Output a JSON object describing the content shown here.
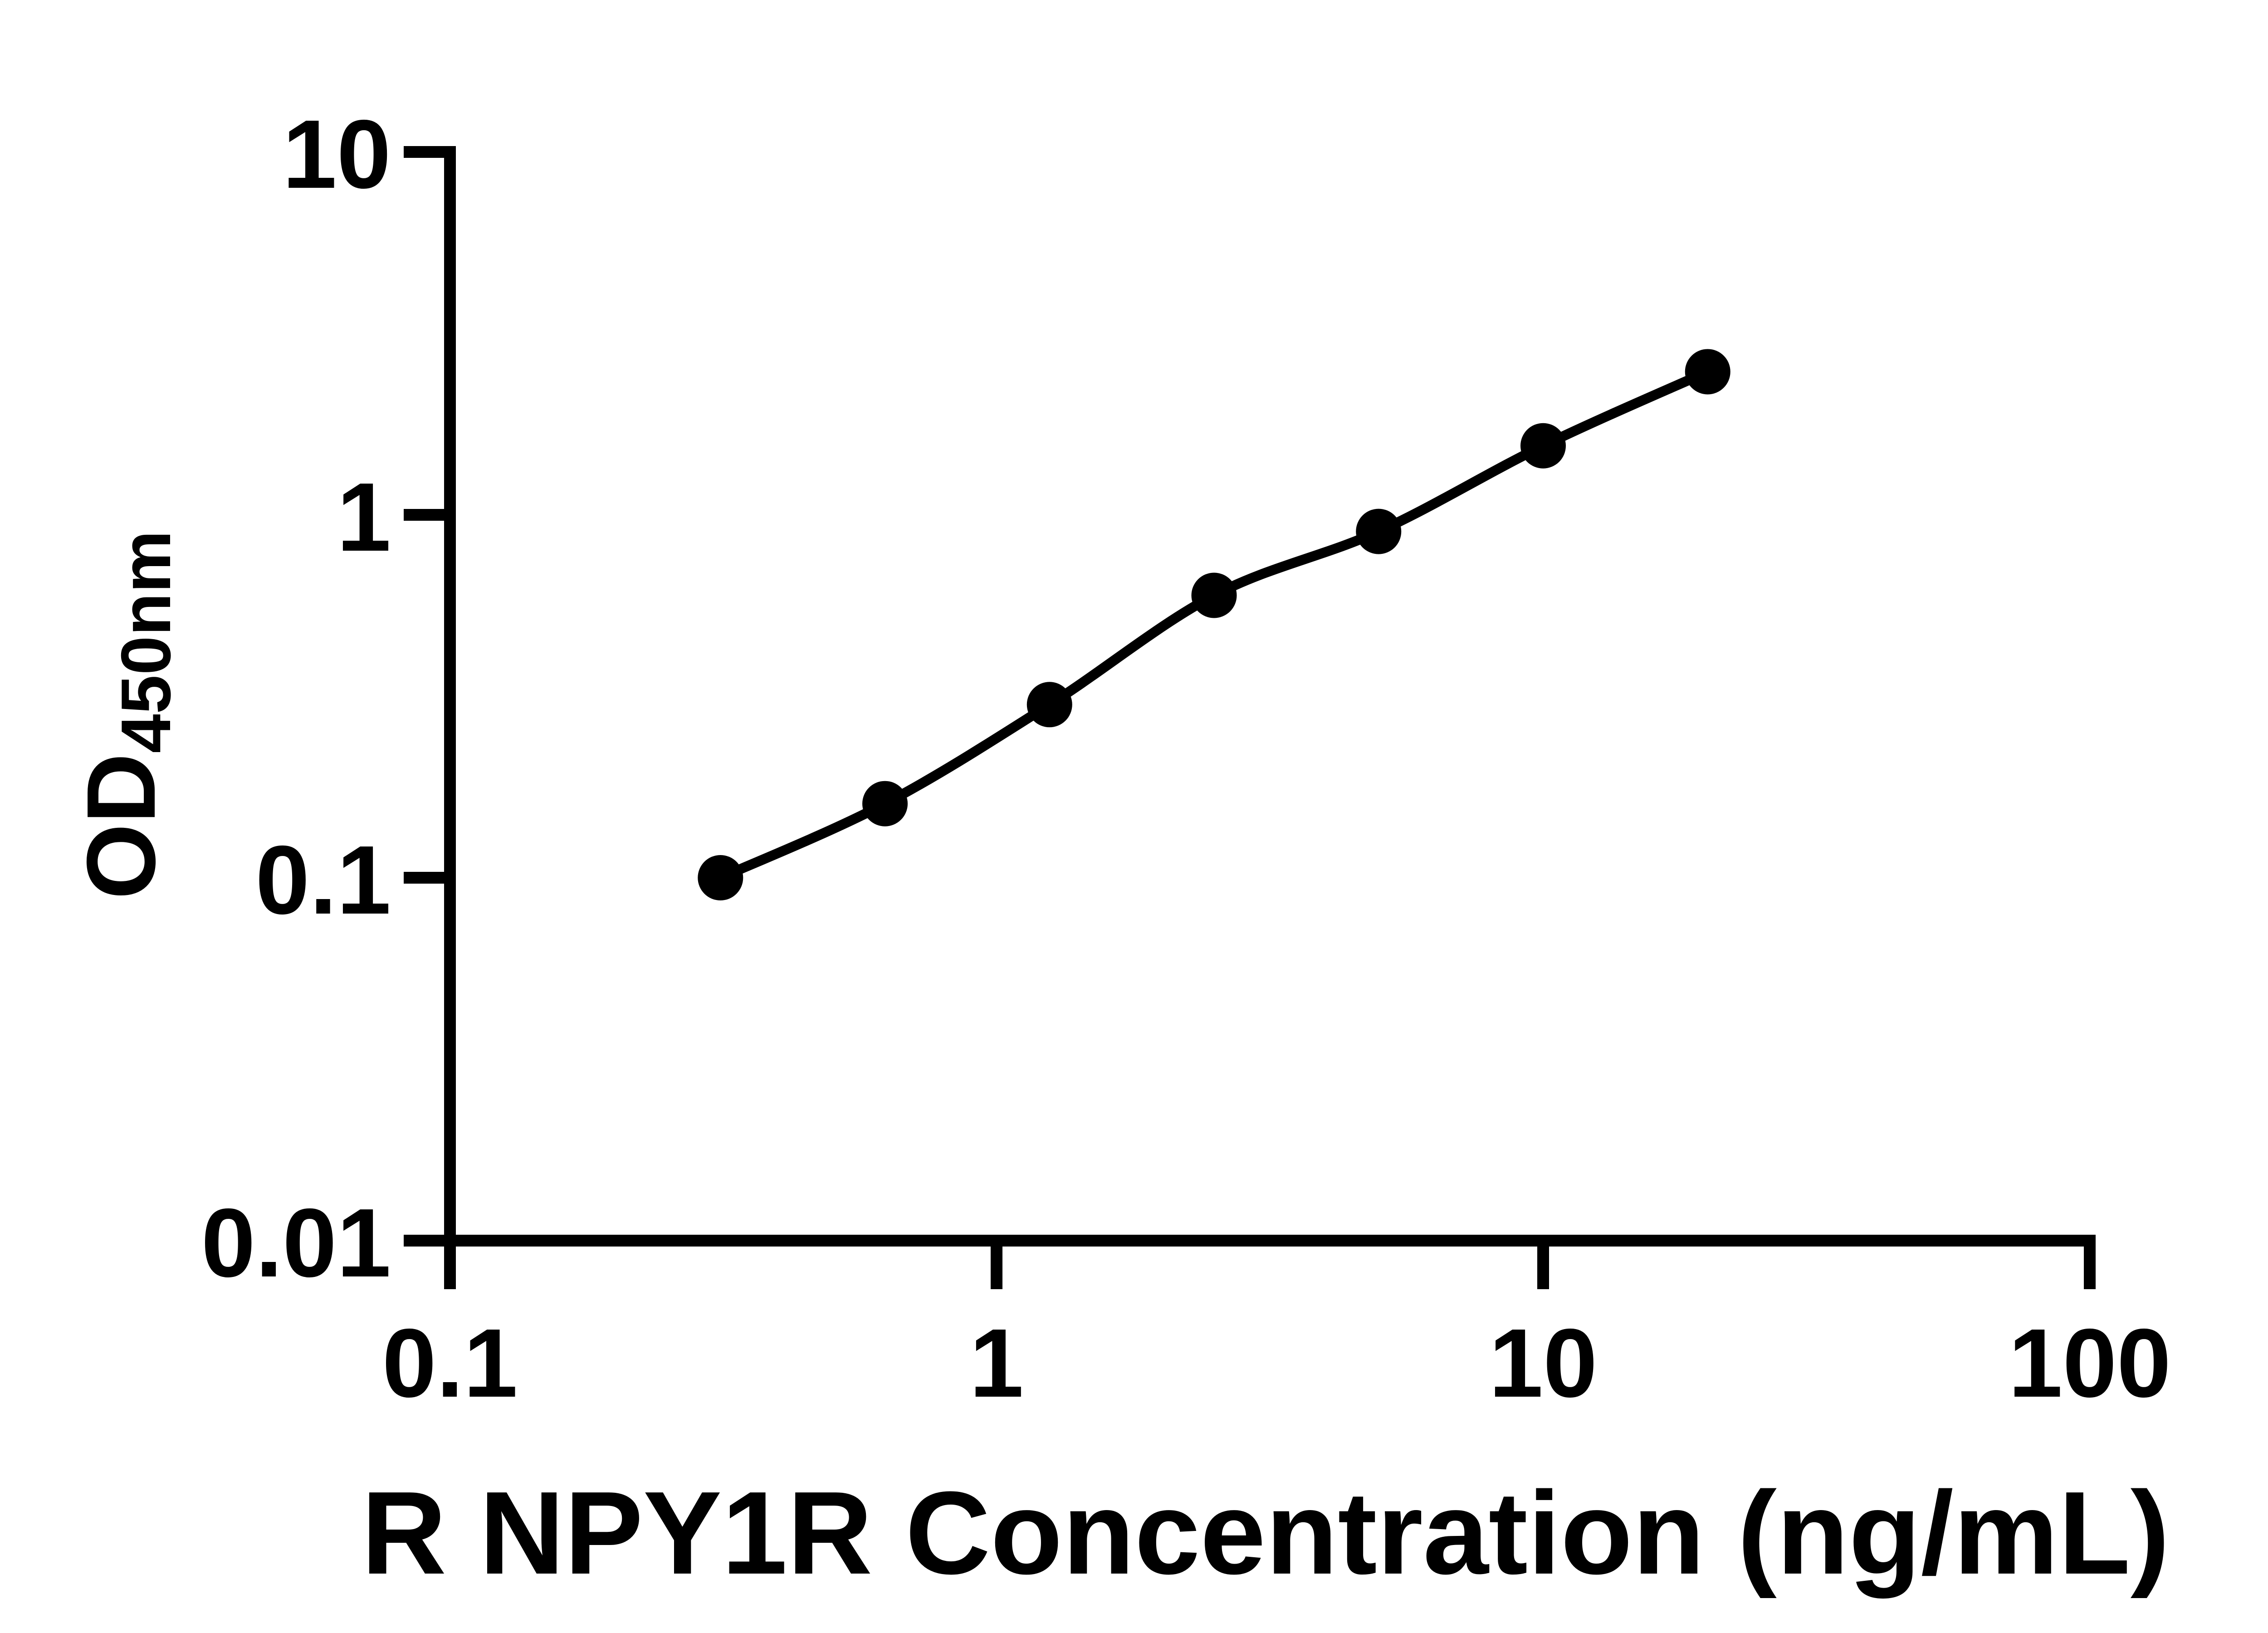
{
  "figure": {
    "background_color": "#ffffff",
    "foreground_color": "#000000"
  },
  "chart_data": {
    "type": "scatter",
    "title": "",
    "xlabel": "R NPY1R Concentration (ng/mL)",
    "ylabel_main": "OD",
    "ylabel_sub": "450nm",
    "x_scale": "log",
    "y_scale": "log",
    "xlim": [
      0.1,
      100
    ],
    "ylim": [
      0.01,
      10
    ],
    "x_tick_values": [
      0.1,
      1,
      10,
      100
    ],
    "x_tick_labels": [
      "0.1",
      "1",
      "10",
      "100"
    ],
    "y_tick_values": [
      10,
      1,
      0.1,
      0.01
    ],
    "y_tick_labels": [
      "10",
      "1",
      "0.1",
      "0.01"
    ],
    "grid": false,
    "legend": false,
    "marker_shape": "circle",
    "marker_color": "#000000",
    "line_color": "#000000",
    "points": [
      {
        "x": 0.3125,
        "y": 0.1
      },
      {
        "x": 0.625,
        "y": 0.16
      },
      {
        "x": 1.25,
        "y": 0.3
      },
      {
        "x": 2.5,
        "y": 0.6
      },
      {
        "x": 5,
        "y": 0.9
      },
      {
        "x": 10,
        "y": 1.55
      },
      {
        "x": 20,
        "y": 2.48
      }
    ]
  }
}
